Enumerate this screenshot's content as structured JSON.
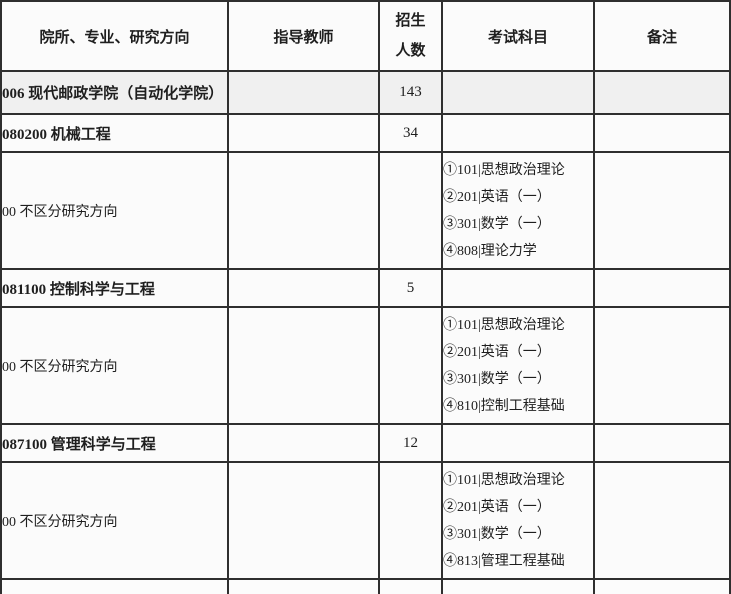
{
  "table": {
    "headers": {
      "program": "院所、专业、研究方向",
      "advisor": "指导教师",
      "quota_line1": "招生",
      "quota_line2": "人数",
      "subjects": "考试科目",
      "note": "备注"
    },
    "colors": {
      "border": "#2f2f2f",
      "institute_row_bg": "#f0f0f0",
      "row_bg": "#fbfbfb",
      "header_bg": "#ffffff",
      "text": "#1e1e1e"
    },
    "rows": [
      {
        "type": "institute",
        "name": "006 现代邮政学院（自动化学院）",
        "advisor": "",
        "quota": "143",
        "subjects": [],
        "note": ""
      },
      {
        "type": "major",
        "name": "080200 机械工程",
        "advisor": "",
        "quota": "34",
        "subjects": [],
        "note": ""
      },
      {
        "type": "direction",
        "name": "00 不区分研究方向",
        "advisor": "",
        "quota": "",
        "subjects": [
          "①101|思想政治理论",
          "②201|英语（一）",
          "③301|数学（一）",
          "④808|理论力学"
        ],
        "note": ""
      },
      {
        "type": "major",
        "name": "081100 控制科学与工程",
        "advisor": "",
        "quota": "5",
        "subjects": [],
        "note": ""
      },
      {
        "type": "direction",
        "name": "00 不区分研究方向",
        "advisor": "",
        "quota": "",
        "subjects": [
          "①101|思想政治理论",
          "②201|英语（一）",
          "③301|数学（一）",
          "④810|控制工程基础"
        ],
        "note": ""
      },
      {
        "type": "major",
        "name": "087100 管理科学与工程",
        "advisor": "",
        "quota": "12",
        "subjects": [],
        "note": ""
      },
      {
        "type": "direction",
        "name": "00 不区分研究方向",
        "advisor": "",
        "quota": "",
        "subjects": [
          "①101|思想政治理论",
          "②201|英语（一）",
          "③301|数学（一）",
          "④813|管理工程基础"
        ],
        "note": ""
      },
      {
        "type": "partial",
        "name": "",
        "advisor": "",
        "quota": "",
        "subjects": [],
        "note": ""
      }
    ]
  }
}
